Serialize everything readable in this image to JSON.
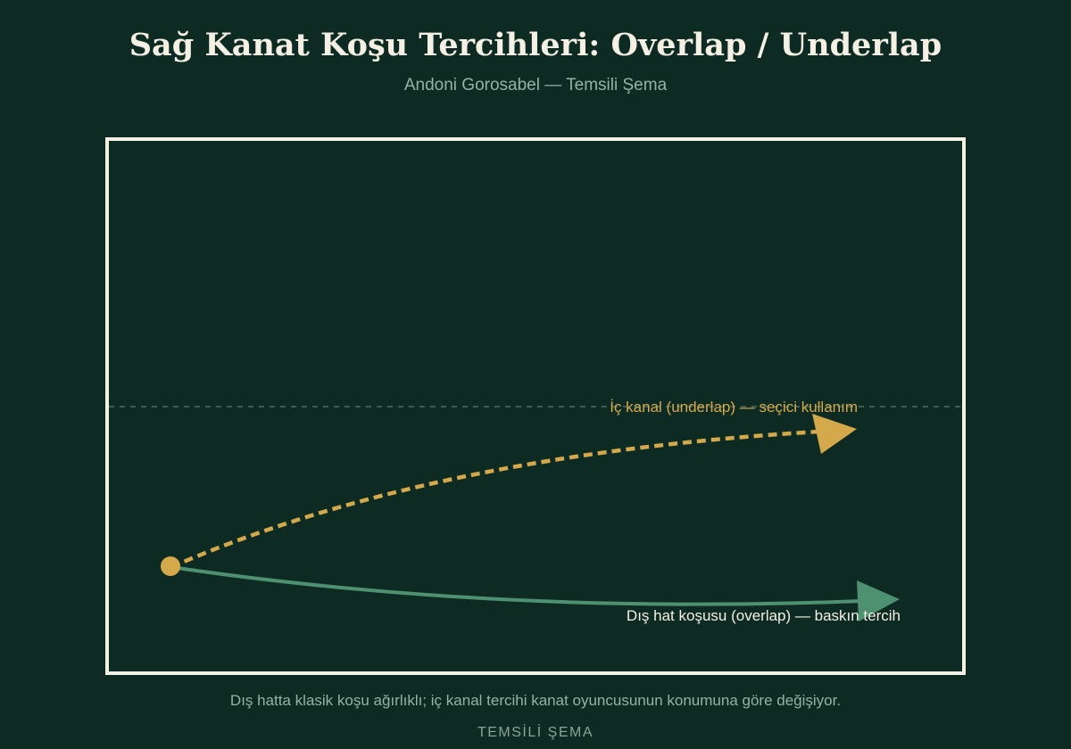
{
  "header": {
    "title": "Sağ Kanat Koşu Tercihleri: Overlap / Underlap",
    "subtitle": "Andoni Gorosabel — Temsili Şema"
  },
  "diagram": {
    "underlap": {
      "label": "İç kanal (underlap) — seçici kullanım",
      "color": "#d4a94c",
      "style": "dashed"
    },
    "overlap": {
      "label": "Dış hat koşusu (overlap) — baskın tercih",
      "color": "#4e9170",
      "style": "solid"
    },
    "colors": {
      "pitch_line": "#f4f0e4",
      "channel_line": "#4f6e60",
      "start_marker": "#d4a94c"
    }
  },
  "footer": {
    "caption": "Dış hatta klasik koşu ağırlıklı; iç kanal tercihi kanat oyuncusunun konumuna göre değişiyor.",
    "tag": "TEMSİLİ ŞEMA"
  }
}
